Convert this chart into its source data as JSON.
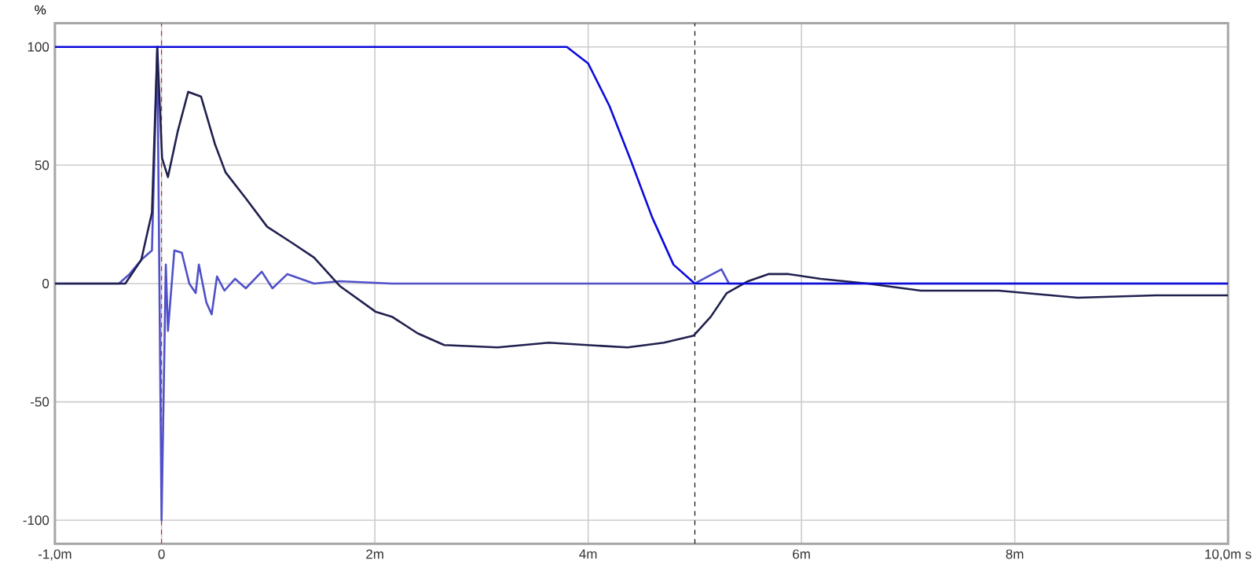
{
  "chart_data": {
    "type": "line",
    "ylabel": "%",
    "xlim": [
      -1,
      10
    ],
    "ylim": [
      -110,
      110
    ],
    "xticks": [
      {
        "value": -1,
        "label": "-1,0m"
      },
      0,
      {
        "value": 2,
        "label": "2m"
      },
      {
        "value": 4,
        "label": "4m"
      },
      {
        "value": 6,
        "label": "6m"
      },
      {
        "value": 8,
        "label": "8m"
      },
      {
        "value": 10,
        "label": "10,0m s"
      }
    ],
    "yticks": [
      -100,
      -50,
      0,
      50,
      100
    ],
    "grid": true,
    "marker": "none",
    "line_style": "solid",
    "ref_lines": [
      {
        "axis": "x",
        "value": 0,
        "color": "#d02020",
        "line_style": "dashed"
      },
      {
        "axis": "x",
        "value": 5,
        "color": "#000000",
        "line_style": "dashed"
      }
    ],
    "series": [
      {
        "color": "#5050c8",
        "x": [
          -1,
          -0.4,
          -0.3,
          -0.19,
          -0.09,
          -0.04,
          0.0,
          0.04,
          0.06,
          0.12,
          0.19,
          0.26,
          0.32,
          0.35,
          0.42,
          0.47,
          0.52,
          0.59,
          0.69,
          0.79,
          0.94,
          1.04,
          1.18,
          1.43,
          1.67,
          2.16,
          5.0,
          5.25,
          5.32,
          10
        ],
        "values": [
          0,
          0,
          4,
          10,
          14,
          100,
          -100,
          8,
          -20,
          14,
          13,
          0,
          -4,
          8,
          -8,
          -13,
          3,
          -3,
          2,
          -2,
          5,
          -2,
          4,
          0,
          1,
          0,
          0,
          6,
          0,
          0
        ]
      },
      {
        "color": "#20204f",
        "x": [
          -1,
          -0.34,
          -0.19,
          -0.09,
          -0.04,
          0.005,
          0.06,
          0.15,
          0.25,
          0.37,
          0.5,
          0.6,
          0.79,
          0.99,
          1.23,
          1.43,
          1.67,
          2.01,
          2.16,
          2.4,
          2.65,
          3.15,
          3.63,
          4.37,
          4.71,
          4.99,
          5.15,
          5.3,
          5.5,
          5.69,
          5.88,
          6.18,
          6.62,
          7.12,
          7.85,
          8.59,
          9.32,
          10
        ],
        "values": [
          0,
          0,
          10,
          30,
          100,
          53,
          45,
          64,
          81,
          79,
          59,
          47,
          36,
          24,
          17,
          11,
          -1,
          -12,
          -14,
          -21,
          -26,
          -27,
          -25,
          -27,
          -25,
          -22,
          -14,
          -4,
          1,
          4,
          4,
          2,
          0,
          -3,
          -3,
          -6,
          -5,
          -5
        ]
      },
      {
        "color": "#0b0bdc",
        "x": [
          -1,
          3.8,
          4.0,
          4.2,
          4.4,
          4.6,
          4.8,
          5.0,
          10
        ],
        "values": [
          100,
          100,
          93,
          75,
          52,
          28,
          8,
          0,
          0
        ]
      }
    ]
  }
}
